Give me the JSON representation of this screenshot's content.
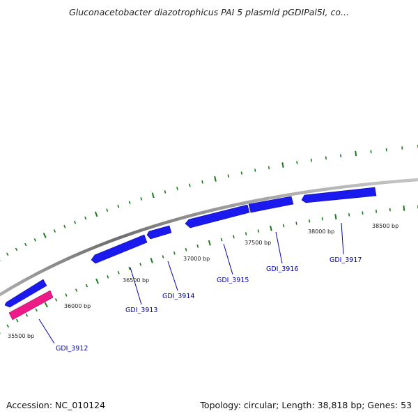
{
  "title": "Gluconacetobacter diazotrophicus PAI 5 plasmid pGDIPal5I, co...",
  "footer": {
    "accession": "Accession: NC_010124",
    "summary": "Topology: circular; Length: 38,818 bp; Genes: 53"
  },
  "colors": {
    "backbone": "#8c8c8c",
    "gene_forward": "#1a1aee",
    "gene_highlight": "#ee1a88",
    "tick": "#1b7a1b",
    "gene_label": "#0000b3"
  },
  "bp_labels": [
    "35500 bp",
    "36000 bp",
    "36500 bp",
    "37000 bp",
    "37500 bp",
    "38000 bp",
    "38500 bp"
  ],
  "genes": [
    {
      "label": "GDI_3912",
      "color_key": "gene_highlight"
    },
    {
      "label": "GDI_3913",
      "color_key": "gene_forward"
    },
    {
      "label": "GDI_3914",
      "color_key": "gene_forward"
    },
    {
      "label": "GDI_3915",
      "color_key": "gene_forward"
    },
    {
      "label": "GDI_3916",
      "color_key": "gene_forward"
    },
    {
      "label": "GDI_3917",
      "color_key": "gene_forward"
    }
  ]
}
